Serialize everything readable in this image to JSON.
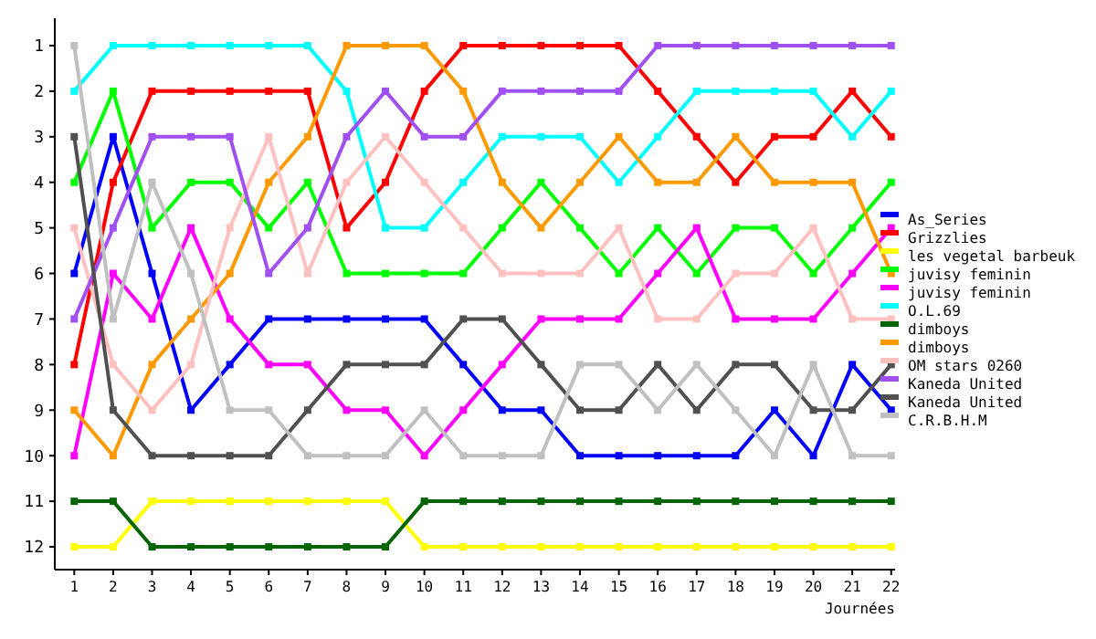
{
  "chart_data": {
    "type": "line",
    "xlabel": "Journées",
    "x": [
      1,
      2,
      3,
      4,
      5,
      6,
      7,
      8,
      9,
      10,
      11,
      12,
      13,
      14,
      15,
      16,
      17,
      18,
      19,
      20,
      21,
      22
    ],
    "xlim": [
      0.5,
      22.1
    ],
    "xticks": [
      1,
      2,
      3,
      4,
      5,
      6,
      7,
      8,
      9,
      10,
      11,
      12,
      13,
      14,
      15,
      16,
      17,
      18,
      19,
      20,
      21,
      22
    ],
    "ylim": [
      12.5,
      0.4
    ],
    "yticks": [
      1,
      2,
      3,
      4,
      5,
      6,
      7,
      8,
      9,
      10,
      11,
      12
    ],
    "grid": false,
    "legend": "right",
    "marker": "square",
    "line_style": "solid",
    "series": [
      {
        "name": "As_Series",
        "color": "#0000ff",
        "values": [
          6,
          3,
          6,
          9,
          8,
          7,
          7,
          7,
          7,
          7,
          8,
          9,
          9,
          10,
          10,
          10,
          10,
          10,
          9,
          10,
          8,
          9
        ]
      },
      {
        "name": "Grizzlies",
        "color": "#ff0000",
        "values": [
          8,
          4,
          2,
          2,
          2,
          2,
          2,
          5,
          4,
          2,
          1,
          1,
          1,
          1,
          1,
          2,
          3,
          4,
          3,
          3,
          2,
          3
        ]
      },
      {
        "name": "les vegetal barbeuk",
        "color": "#ffff00",
        "values": [
          12,
          12,
          11,
          11,
          11,
          11,
          11,
          11,
          11,
          12,
          12,
          12,
          12,
          12,
          12,
          12,
          12,
          12,
          12,
          12,
          12,
          12
        ]
      },
      {
        "name": "juvisy feminin",
        "color": "#00ff00",
        "values": [
          4,
          2,
          5,
          4,
          4,
          5,
          4,
          6,
          6,
          6,
          6,
          5,
          4,
          5,
          6,
          5,
          6,
          5,
          5,
          6,
          5,
          4
        ]
      },
      {
        "name": "juvisy feminin",
        "color": "#ff00ff",
        "values": [
          10,
          6,
          7,
          5,
          7,
          8,
          8,
          9,
          9,
          10,
          9,
          8,
          7,
          7,
          7,
          6,
          5,
          7,
          7,
          7,
          6,
          5
        ]
      },
      {
        "name": "O.L.69",
        "color": "#00ffff",
        "values": [
          2,
          1,
          1,
          1,
          1,
          1,
          1,
          2,
          5,
          5,
          4,
          3,
          3,
          3,
          4,
          3,
          2,
          2,
          2,
          2,
          3,
          2
        ]
      },
      {
        "name": "dimboys",
        "color": "#006400",
        "values": [
          11,
          11,
          12,
          12,
          12,
          12,
          12,
          12,
          12,
          11,
          11,
          11,
          11,
          11,
          11,
          11,
          11,
          11,
          11,
          11,
          11,
          11
        ]
      },
      {
        "name": "dimboys",
        "color": "#ff9900",
        "values": [
          9,
          10,
          8,
          7,
          6,
          4,
          3,
          1,
          1,
          1,
          2,
          4,
          5,
          4,
          3,
          4,
          4,
          3,
          4,
          4,
          4,
          6
        ]
      },
      {
        "name": "OM stars 0260",
        "color": "#ffc0c0",
        "values": [
          5,
          8,
          9,
          8,
          5,
          3,
          6,
          4,
          3,
          4,
          5,
          6,
          6,
          6,
          5,
          7,
          7,
          6,
          6,
          5,
          7,
          7
        ]
      },
      {
        "name": "Kaneda United",
        "color": "#a050f0",
        "values": [
          7,
          5,
          3,
          3,
          3,
          6,
          5,
          3,
          2,
          3,
          3,
          2,
          2,
          2,
          2,
          1,
          1,
          1,
          1,
          1,
          1,
          1
        ]
      },
      {
        "name": "Kaneda United",
        "color": "#505050",
        "values": [
          3,
          9,
          10,
          10,
          10,
          10,
          9,
          8,
          8,
          8,
          7,
          7,
          8,
          9,
          9,
          8,
          9,
          8,
          8,
          9,
          9,
          8
        ]
      },
      {
        "name": "C.R.B.H.M",
        "color": "#c0c0c0",
        "values": [
          1,
          7,
          4,
          6,
          9,
          9,
          10,
          10,
          10,
          9,
          10,
          10,
          10,
          8,
          8,
          9,
          8,
          9,
          10,
          8,
          10,
          10
        ]
      }
    ]
  }
}
